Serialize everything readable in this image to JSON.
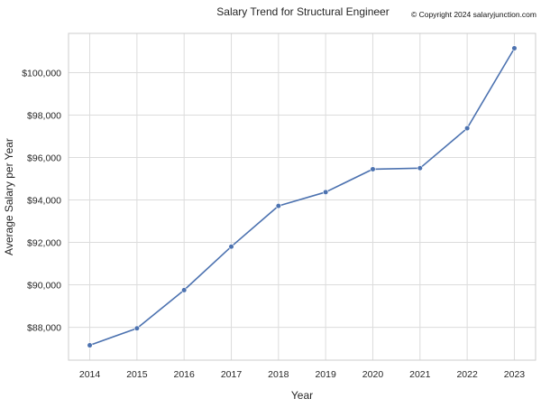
{
  "chart_data": {
    "type": "line",
    "title": "Salary Trend for Structural Engineer",
    "copyright": "© Copyright 2024 salaryjunction.com",
    "xlabel": "Year",
    "ylabel": "Average Salary per Year",
    "x": [
      2014,
      2015,
      2016,
      2017,
      2018,
      2019,
      2020,
      2021,
      2022,
      2023
    ],
    "x_tick_labels": [
      "2014",
      "2015",
      "2016",
      "2017",
      "2018",
      "2019",
      "2020",
      "2021",
      "2022",
      "2023"
    ],
    "series": [
      {
        "values": [
          87150,
          87950,
          89750,
          91800,
          93720,
          94370,
          95450,
          95500,
          97380,
          101150
        ]
      }
    ],
    "y_ticks": [
      88000,
      90000,
      92000,
      94000,
      96000,
      98000,
      100000
    ],
    "y_tick_labels": [
      "$88,000",
      "$90,000",
      "$92,000",
      "$94,000",
      "$96,000",
      "$98,000",
      "$100,000"
    ],
    "xlim": [
      2013.55,
      2023.45
    ],
    "ylim": [
      86450,
      101850
    ],
    "grid": true,
    "colors": {
      "line": "#4c72b0",
      "grid": "#dcdcdc",
      "frame": "#cccccc"
    }
  }
}
